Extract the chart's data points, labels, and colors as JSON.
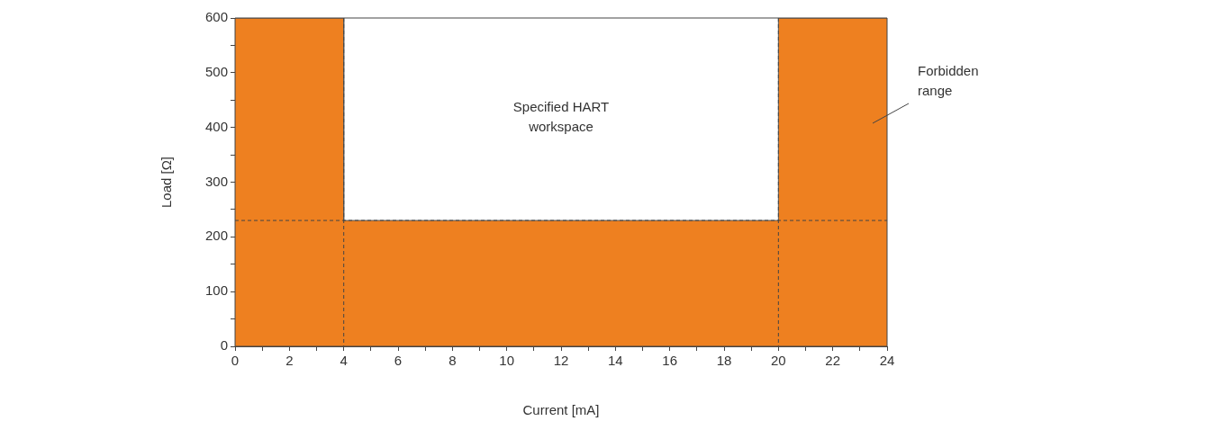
{
  "chart_data": {
    "type": "area",
    "xlabel": "Current [mA]",
    "ylabel": "Load [Ω]",
    "x": [
      0,
      4,
      4,
      20,
      20,
      24
    ],
    "series": [
      {
        "color": "#ee8020",
        "values": [
          600,
          600,
          230,
          230,
          600,
          600
        ]
      }
    ],
    "xlim": [
      0,
      24
    ],
    "xticks": [
      0,
      {
        "value": 1,
        "label": null
      },
      2,
      {
        "value": 3,
        "label": null
      },
      4,
      {
        "value": 5,
        "label": null
      },
      6,
      {
        "value": 7,
        "label": null
      },
      8,
      {
        "value": 9,
        "label": null
      },
      10,
      {
        "value": 11,
        "label": null
      },
      12,
      {
        "value": 13,
        "label": null
      },
      14,
      {
        "value": 15,
        "label": null
      },
      16,
      {
        "value": 17,
        "label": null
      },
      18,
      {
        "value": 19,
        "label": null
      },
      20,
      {
        "value": 21,
        "label": null
      },
      22,
      {
        "value": 23,
        "label": null
      },
      24
    ],
    "ylim": [
      0,
      600
    ],
    "yticks": [
      0,
      {
        "value": 50,
        "label": null
      },
      100,
      {
        "value": 150,
        "label": null
      },
      200,
      {
        "value": 250,
        "label": null
      },
      300,
      {
        "value": 350,
        "label": null
      },
      400,
      {
        "value": 450,
        "label": null
      },
      500,
      {
        "value": 550,
        "label": null
      },
      600
    ],
    "ref_lines": [
      {
        "axis": "y",
        "value": 230,
        "line_style": "dashed",
        "color": "#444444"
      },
      {
        "axis": "x",
        "value": 4,
        "line_style": "dashed",
        "color": "#444444"
      },
      {
        "axis": "x",
        "value": 20,
        "line_style": "dashed",
        "color": "#444444"
      }
    ],
    "annotations": [
      "Specified HART workspace",
      "Forbidden range"
    ],
    "grid": false,
    "legend": false
  }
}
